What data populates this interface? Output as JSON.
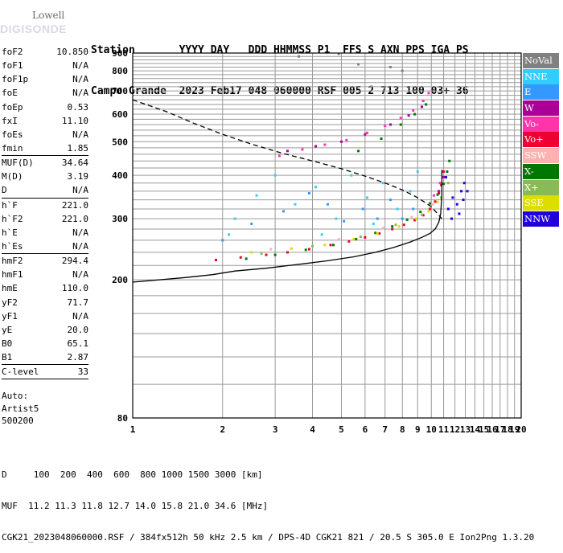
{
  "logo": {
    "top": "Lowell",
    "bottom": "DIGISONDE"
  },
  "header": {
    "labels": "Station       YYYY DAY   DDD HHMMSS P1  FFS S AXN PPS IGA PS",
    "values": "Campo Grande  2023 Feb17 048 060000 RSF 005 2 713 100 03+ 36"
  },
  "params": {
    "group1": [
      {
        "label": "foF2",
        "value": "10.850"
      },
      {
        "label": "foF1",
        "value": "N/A"
      },
      {
        "label": "foF1p",
        "value": "N/A"
      },
      {
        "label": "foE",
        "value": "N/A"
      },
      {
        "label": "foEp",
        "value": "0.53"
      },
      {
        "label": "fxI",
        "value": "11.10"
      },
      {
        "label": "foEs",
        "value": "N/A"
      },
      {
        "label": "fmin",
        "value": "1.85"
      }
    ],
    "group2": [
      {
        "label": "MUF(D)",
        "value": "34.64"
      },
      {
        "label": "M(D)",
        "value": "3.19"
      },
      {
        "label": "D",
        "value": "N/A"
      }
    ],
    "group3": [
      {
        "label": "h`F",
        "value": "221.0"
      },
      {
        "label": "h`F2",
        "value": "221.0"
      },
      {
        "label": "h`E",
        "value": "N/A"
      },
      {
        "label": "h`Es",
        "value": "N/A"
      }
    ],
    "group4": [
      {
        "label": "hmF2",
        "value": "294.4"
      },
      {
        "label": "hmF1",
        "value": "N/A"
      },
      {
        "label": "hmE",
        "value": "110.0"
      },
      {
        "label": "yF2",
        "value": "71.7"
      },
      {
        "label": "yF1",
        "value": "N/A"
      },
      {
        "label": "yE",
        "value": "20.0"
      },
      {
        "label": "B0",
        "value": "65.1"
      },
      {
        "label": "B1",
        "value": "2.87"
      }
    ],
    "group5": [
      {
        "label": "C-level",
        "value": "33"
      }
    ]
  },
  "auto": {
    "line1": "Auto:",
    "line2": "Artist5",
    "line3": "500200"
  },
  "footer": {
    "d_row": "D     100  200  400  600  800 1000 1500 3000 [km]",
    "muf_row": "MUF  11.2 11.3 11.8 12.7 14.0 15.8 21.0 34.6 [MHz]",
    "file_row": "CGK21_2023048060000.RSF / 384fx512h 50 kHz 2.5 km / DPS-4D CGK21 821 / 20.5 S 305.0 E Ion2Png 1.3.20"
  },
  "legend": [
    {
      "label": "NoVal",
      "color": "#808080"
    },
    {
      "label": "NNE",
      "color": "#33ccff"
    },
    {
      "label": "E",
      "color": "#3399ff"
    },
    {
      "label": "W",
      "color": "#aa0099"
    },
    {
      "label": "Vo-",
      "color": "#ff33aa"
    },
    {
      "label": "Vo+",
      "color": "#ee0033"
    },
    {
      "label": "SSW",
      "color": "#ffb0b0"
    },
    {
      "label": "X-",
      "color": "#007700"
    },
    {
      "label": "X+",
      "color": "#88bb55"
    },
    {
      "label": "SSE",
      "color": "#dddd00"
    },
    {
      "label": "NNW",
      "color": "#2200dd"
    }
  ],
  "chart_data": {
    "type": "scatter",
    "title": "",
    "xlabel": "",
    "ylabel": "",
    "x_scale": "log",
    "y_scale": "log",
    "xlim": [
      1,
      20
    ],
    "ylim": [
      80,
      900
    ],
    "x_ticks": [
      1,
      2,
      3,
      4,
      5,
      6,
      7,
      8,
      9,
      10,
      11,
      12,
      13,
      14,
      15,
      16,
      17,
      18,
      19,
      20
    ],
    "y_ticks": [
      80,
      200,
      300,
      400,
      500,
      600,
      700,
      800,
      900
    ],
    "grid": true,
    "series": [
      {
        "name": "Vo+",
        "color": "#ee0033",
        "points": [
          [
            1.9,
            228
          ],
          [
            2.3,
            232
          ],
          [
            2.8,
            236
          ],
          [
            3.3,
            240
          ],
          [
            3.9,
            245
          ],
          [
            4.6,
            252
          ],
          [
            5.3,
            258
          ],
          [
            6.0,
            265
          ],
          [
            6.7,
            272
          ],
          [
            7.4,
            280
          ],
          [
            8.1,
            288
          ],
          [
            8.8,
            297
          ],
          [
            9.4,
            307
          ],
          [
            9.9,
            320
          ],
          [
            10.3,
            336
          ],
          [
            10.6,
            355
          ],
          [
            10.8,
            375
          ],
          [
            11.0,
            410
          ]
        ]
      },
      {
        "name": "X-",
        "color": "#007700",
        "points": [
          [
            2.4,
            230
          ],
          [
            3.0,
            236
          ],
          [
            3.8,
            244
          ],
          [
            4.7,
            252
          ],
          [
            5.6,
            262
          ],
          [
            6.5,
            273
          ],
          [
            7.4,
            285
          ],
          [
            8.3,
            298
          ],
          [
            9.2,
            314
          ],
          [
            9.9,
            332
          ],
          [
            10.5,
            352
          ],
          [
            11.0,
            378
          ],
          [
            11.3,
            410
          ],
          [
            11.5,
            440
          ],
          [
            5.7,
            470
          ],
          [
            6.8,
            510
          ],
          [
            7.9,
            560
          ],
          [
            8.8,
            600
          ],
          [
            9.6,
            640
          ]
        ]
      },
      {
        "name": "NNE",
        "color": "#33ccff",
        "points": [
          [
            2.2,
            300
          ],
          [
            2.6,
            350
          ],
          [
            3.0,
            400
          ],
          [
            3.5,
            330
          ],
          [
            4.1,
            370
          ],
          [
            4.8,
            300
          ],
          [
            5.4,
            400
          ],
          [
            6.1,
            345
          ],
          [
            6.9,
            380
          ],
          [
            7.7,
            320
          ],
          [
            8.5,
            360
          ],
          [
            9.0,
            410
          ],
          [
            2.1,
            270
          ],
          [
            4.3,
            270
          ],
          [
            6.4,
            290
          ]
        ]
      },
      {
        "name": "E",
        "color": "#3399ff",
        "points": [
          [
            2.0,
            260
          ],
          [
            2.5,
            290
          ],
          [
            3.2,
            315
          ],
          [
            3.9,
            355
          ],
          [
            4.5,
            330
          ],
          [
            5.1,
            295
          ],
          [
            5.9,
            320
          ],
          [
            6.6,
            300
          ],
          [
            7.3,
            340
          ],
          [
            8.0,
            300
          ],
          [
            8.7,
            320
          ]
        ]
      },
      {
        "name": "Vo-",
        "color": "#ff33aa",
        "points": [
          [
            3.1,
            455
          ],
          [
            3.7,
            475
          ],
          [
            4.4,
            490
          ],
          [
            5.2,
            505
          ],
          [
            6.1,
            530
          ],
          [
            7.0,
            555
          ],
          [
            7.9,
            585
          ],
          [
            8.7,
            615
          ],
          [
            9.4,
            655
          ],
          [
            9.8,
            690
          ],
          [
            10.2,
            350
          ],
          [
            10.7,
            380
          ]
        ]
      },
      {
        "name": "NNW",
        "color": "#2200dd",
        "points": [
          [
            11.4,
            320
          ],
          [
            11.8,
            345
          ],
          [
            12.2,
            330
          ],
          [
            12.6,
            360
          ],
          [
            12.9,
            380
          ],
          [
            11.7,
            300
          ],
          [
            12.4,
            310
          ],
          [
            11.2,
            395
          ],
          [
            12.8,
            340
          ],
          [
            13.2,
            360
          ]
        ]
      },
      {
        "name": "W",
        "color": "#aa0099",
        "points": [
          [
            3.3,
            470
          ],
          [
            4.1,
            485
          ],
          [
            5.0,
            500
          ],
          [
            6.0,
            525
          ],
          [
            7.3,
            560
          ],
          [
            8.4,
            595
          ],
          [
            9.3,
            630
          ],
          [
            10.6,
            360
          ],
          [
            11.0,
            395
          ]
        ]
      },
      {
        "name": "SSE",
        "color": "#dddd00",
        "points": [
          [
            2.5,
            240
          ],
          [
            3.4,
            246
          ],
          [
            4.4,
            252
          ],
          [
            5.5,
            262
          ],
          [
            6.6,
            272
          ],
          [
            7.8,
            285
          ],
          [
            8.9,
            300
          ],
          [
            9.8,
            315
          ],
          [
            10.5,
            335
          ]
        ]
      },
      {
        "name": "X+",
        "color": "#88bb55",
        "points": [
          [
            2.7,
            238
          ],
          [
            4.0,
            250
          ],
          [
            5.8,
            266
          ],
          [
            7.6,
            288
          ],
          [
            9.3,
            308
          ],
          [
            10.8,
            345
          ],
          [
            11.4,
            380
          ]
        ]
      },
      {
        "name": "SSW",
        "color": "#ffb0b0",
        "points": [
          [
            2.9,
            245
          ],
          [
            4.9,
            262
          ],
          [
            6.9,
            282
          ],
          [
            8.6,
            303
          ],
          [
            10.1,
            330
          ]
        ]
      },
      {
        "name": "NoVal",
        "color": "#808080",
        "points": [
          [
            3.6,
            880
          ],
          [
            4.9,
            895
          ],
          [
            5.7,
            835
          ],
          [
            7.3,
            820
          ],
          [
            8.0,
            800
          ],
          [
            6.3,
            720
          ]
        ]
      }
    ],
    "lines": [
      {
        "style": "solid",
        "color": "#000000",
        "points": [
          [
            1.85,
            207
          ],
          [
            2.2,
            212
          ],
          [
            2.8,
            216
          ],
          [
            3.5,
            221
          ],
          [
            4.5,
            227
          ],
          [
            5.5,
            233
          ],
          [
            6.5,
            240
          ],
          [
            7.5,
            248
          ],
          [
            8.5,
            257
          ],
          [
            9.3,
            265
          ],
          [
            9.9,
            272
          ],
          [
            10.3,
            280
          ],
          [
            10.6,
            293
          ],
          [
            10.75,
            310
          ],
          [
            10.85,
            350
          ],
          [
            10.85,
            415
          ]
        ]
      },
      {
        "style": "dashed",
        "color": "#000000",
        "points": [
          [
            1.0,
            660
          ],
          [
            1.3,
            610
          ],
          [
            1.6,
            565
          ],
          [
            2.0,
            525
          ],
          [
            2.5,
            492
          ],
          [
            3.2,
            462
          ],
          [
            4.0,
            440
          ],
          [
            5.0,
            418
          ],
          [
            6.0,
            398
          ],
          [
            7.0,
            380
          ],
          [
            8.0,
            363
          ],
          [
            9.0,
            345
          ],
          [
            10.0,
            325
          ],
          [
            10.85,
            300
          ]
        ]
      },
      {
        "style": "solid",
        "color": "#000000",
        "points": [
          [
            1.0,
            197
          ],
          [
            1.5,
            203
          ],
          [
            1.85,
            207
          ]
        ]
      }
    ]
  }
}
